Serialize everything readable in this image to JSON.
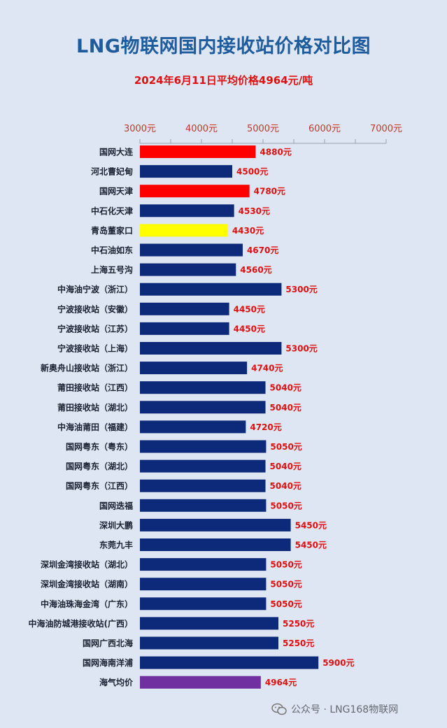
{
  "chart_data": {
    "type": "bar",
    "orientation": "horizontal",
    "title": "LNG物联网国内接收站价格对比图",
    "subtitle": "2024年6月11日平均价格4964元/吨",
    "x_ticks": [
      "3000元",
      "4000元",
      "5000元",
      "6000元",
      "7000元"
    ],
    "xlim": [
      3000,
      7000
    ],
    "axis_position": "top",
    "grid": false,
    "value_suffix": "元",
    "colors": {
      "default": "#0d2a7a",
      "highlight_red": "#ff0000",
      "highlight_yellow": "#ffff00",
      "average": "#7030a0",
      "label": "#e01010",
      "axis_text": "#c0392b"
    },
    "categories": [
      "国网大连",
      "河北曹妃甸",
      "国网天津",
      "中石化天津",
      "青岛董家口",
      "中石油如东",
      "上海五号沟",
      "中海油宁波（浙江）",
      "宁波接收站（安徽）",
      "宁波接收站（江苏）",
      "宁波接收站（上海）",
      "新奥舟山接收站（浙江）",
      "莆田接收站（江西）",
      "莆田接收站（湖北）",
      "中海油莆田（福建）",
      "国网粤东（粤东）",
      "国网粤东（湖北）",
      "国网粤东（江西）",
      "国网迭福",
      "深圳大鹏",
      "东莞九丰",
      "深圳金湾接收站（湖北）",
      "深圳金湾接收站（湖南）",
      "中海油珠海金湾（广东）",
      "中海油防城港接收站(广西）",
      "国网广西北海",
      "国网海南洋浦",
      "海气均价"
    ],
    "values": [
      4880,
      4500,
      4780,
      4530,
      4430,
      4670,
      4560,
      5300,
      4450,
      4450,
      5300,
      4740,
      5040,
      5040,
      4720,
      5050,
      5040,
      5040,
      5050,
      5450,
      5450,
      5050,
      5050,
      5050,
      5250,
      5250,
      5900,
      4964
    ],
    "bar_colors": [
      "#ff0000",
      "#0d2a7a",
      "#ff0000",
      "#0d2a7a",
      "#ffff00",
      "#0d2a7a",
      "#0d2a7a",
      "#0d2a7a",
      "#0d2a7a",
      "#0d2a7a",
      "#0d2a7a",
      "#0d2a7a",
      "#0d2a7a",
      "#0d2a7a",
      "#0d2a7a",
      "#0d2a7a",
      "#0d2a7a",
      "#0d2a7a",
      "#0d2a7a",
      "#0d2a7a",
      "#0d2a7a",
      "#0d2a7a",
      "#0d2a7a",
      "#0d2a7a",
      "#0d2a7a",
      "#0d2a7a",
      "#0d2a7a",
      "#7030a0"
    ],
    "data_labels": [
      "4880元",
      "4500元",
      "4780元",
      "4530元",
      "4430元",
      "4670元",
      "4560元",
      "5300元",
      "4450元",
      "4450元",
      "5300元",
      "4740元",
      "5040元",
      "5040元",
      "4720元",
      "5050元",
      "5040元",
      "5040元",
      "5050元",
      "5450元",
      "5450元",
      "5050元",
      "5050元",
      "5050元",
      "5250元",
      "5250元",
      "5900元",
      "4964元"
    ]
  },
  "watermark": {
    "text": "公众号 · LNG168物联网",
    "icon": "wechat-icon"
  }
}
